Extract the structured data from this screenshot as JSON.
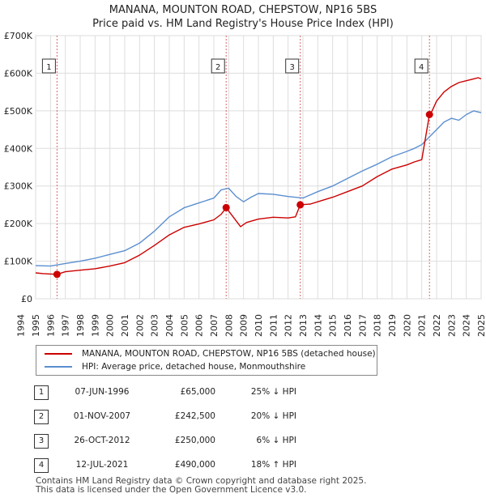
{
  "chart_data": {
    "type": "line",
    "title": "MANANA, MOUNTON ROAD, CHEPSTOW, NP16 5BS",
    "subtitle": "Price paid vs. HM Land Registry's House Price Index (HPI)",
    "xlabel": "",
    "ylabel": "",
    "xlim": [
      1995,
      2025
    ],
    "ylim": [
      0,
      700000
    ],
    "x_ticks": [
      "1994",
      "1995",
      "1996",
      "1997",
      "1998",
      "1999",
      "2000",
      "2001",
      "2002",
      "2003",
      "2004",
      "2005",
      "2006",
      "2007",
      "2008",
      "2009",
      "2010",
      "2011",
      "2012",
      "2013",
      "2014",
      "2015",
      "2016",
      "2017",
      "2018",
      "2019",
      "2020",
      "2021",
      "2022",
      "2023",
      "2024",
      "2025"
    ],
    "y_ticks": [
      {
        "value": 0,
        "label": "£0"
      },
      {
        "value": 100000,
        "label": "£100K"
      },
      {
        "value": 200000,
        "label": "£200K"
      },
      {
        "value": 300000,
        "label": "£300K"
      },
      {
        "value": 400000,
        "label": "£400K"
      },
      {
        "value": 500000,
        "label": "£500K"
      },
      {
        "value": 600000,
        "label": "£600K"
      },
      {
        "value": 700000,
        "label": "£700K"
      }
    ],
    "series": [
      {
        "name": "MANANA, MOUNTON ROAD, CHEPSTOW, NP16 5BS (detached house)",
        "color": "#cc0000",
        "x": [
          1995.0,
          1995.5,
          1996.0,
          1996.44,
          1997.0,
          1998.0,
          1999.0,
          2000.0,
          2001.0,
          2002.0,
          2003.0,
          2004.0,
          2005.0,
          2006.0,
          2007.0,
          2007.5,
          2007.83,
          2008.3,
          2008.8,
          2009.2,
          2010.0,
          2011.0,
          2012.0,
          2012.5,
          2012.82,
          2013.5,
          2014.0,
          2015.0,
          2016.0,
          2017.0,
          2018.0,
          2019.0,
          2020.0,
          2020.5,
          2021.0,
          2021.52,
          2021.7,
          2022.0,
          2022.5,
          2023.0,
          2023.5,
          2024.0,
          2024.5,
          2024.8,
          2025.0
        ],
        "values": [
          69000,
          67000,
          66000,
          65000,
          72000,
          76000,
          80000,
          87000,
          96000,
          116000,
          142000,
          170000,
          190000,
          199000,
          210000,
          225000,
          242500,
          218000,
          192000,
          203000,
          212000,
          217000,
          215000,
          218000,
          250000,
          252000,
          258000,
          270000,
          285000,
          300000,
          325000,
          345000,
          356000,
          364000,
          370000,
          490000,
          500000,
          526000,
          550000,
          565000,
          575000,
          580000,
          585000,
          588000,
          585000
        ]
      },
      {
        "name": "HPI: Average price, detached house, Monmouthshire",
        "color": "#5b8fd0",
        "x": [
          1995.0,
          1996.0,
          1997.0,
          1998.0,
          1999.0,
          2000.0,
          2001.0,
          2002.0,
          2003.0,
          2004.0,
          2005.0,
          2006.0,
          2007.0,
          2007.5,
          2008.0,
          2008.5,
          2009.0,
          2009.5,
          2010.0,
          2011.0,
          2012.0,
          2013.0,
          2014.0,
          2015.0,
          2016.0,
          2017.0,
          2018.0,
          2019.0,
          2020.0,
          2020.5,
          2021.0,
          2021.5,
          2022.0,
          2022.5,
          2023.0,
          2023.5,
          2024.0,
          2024.5,
          2025.0
        ],
        "values": [
          88000,
          87000,
          94000,
          100000,
          108000,
          118000,
          128000,
          148000,
          180000,
          218000,
          242000,
          255000,
          268000,
          290000,
          294000,
          272000,
          258000,
          270000,
          280000,
          278000,
          272000,
          268000,
          285000,
          300000,
          320000,
          340000,
          358000,
          378000,
          392000,
          400000,
          410000,
          430000,
          450000,
          470000,
          480000,
          475000,
          490000,
          500000,
          495000
        ]
      }
    ],
    "markers": [
      {
        "label": "1",
        "x": 1996.44,
        "value": 65000
      },
      {
        "label": "2",
        "x": 2007.83,
        "value": 242500
      },
      {
        "label": "3",
        "x": 2012.82,
        "value": 250000
      },
      {
        "label": "4",
        "x": 2021.52,
        "value": 490000
      }
    ]
  },
  "legend": {
    "items": [
      {
        "label": "MANANA, MOUNTON ROAD, CHEPSTOW, NP16 5BS (detached house)",
        "color": "#cc0000"
      },
      {
        "label": "HPI: Average price, detached house, Monmouthshire",
        "color": "#5b8fd0"
      }
    ]
  },
  "sales": [
    {
      "num": "1",
      "date": "07-JUN-1996",
      "price": "£65,000",
      "hpi": "25% ↓ HPI"
    },
    {
      "num": "2",
      "date": "01-NOV-2007",
      "price": "£242,500",
      "hpi": "20% ↓ HPI"
    },
    {
      "num": "3",
      "date": "26-OCT-2012",
      "price": "£250,000",
      "hpi": "6% ↓ HPI"
    },
    {
      "num": "4",
      "date": "12-JUL-2021",
      "price": "£490,000",
      "hpi": "18% ↑ HPI"
    }
  ],
  "footer": {
    "line1": "Contains HM Land Registry data © Crown copyright and database right 2025.",
    "line2": "This data is licensed under the Open Government Licence v3.0."
  }
}
